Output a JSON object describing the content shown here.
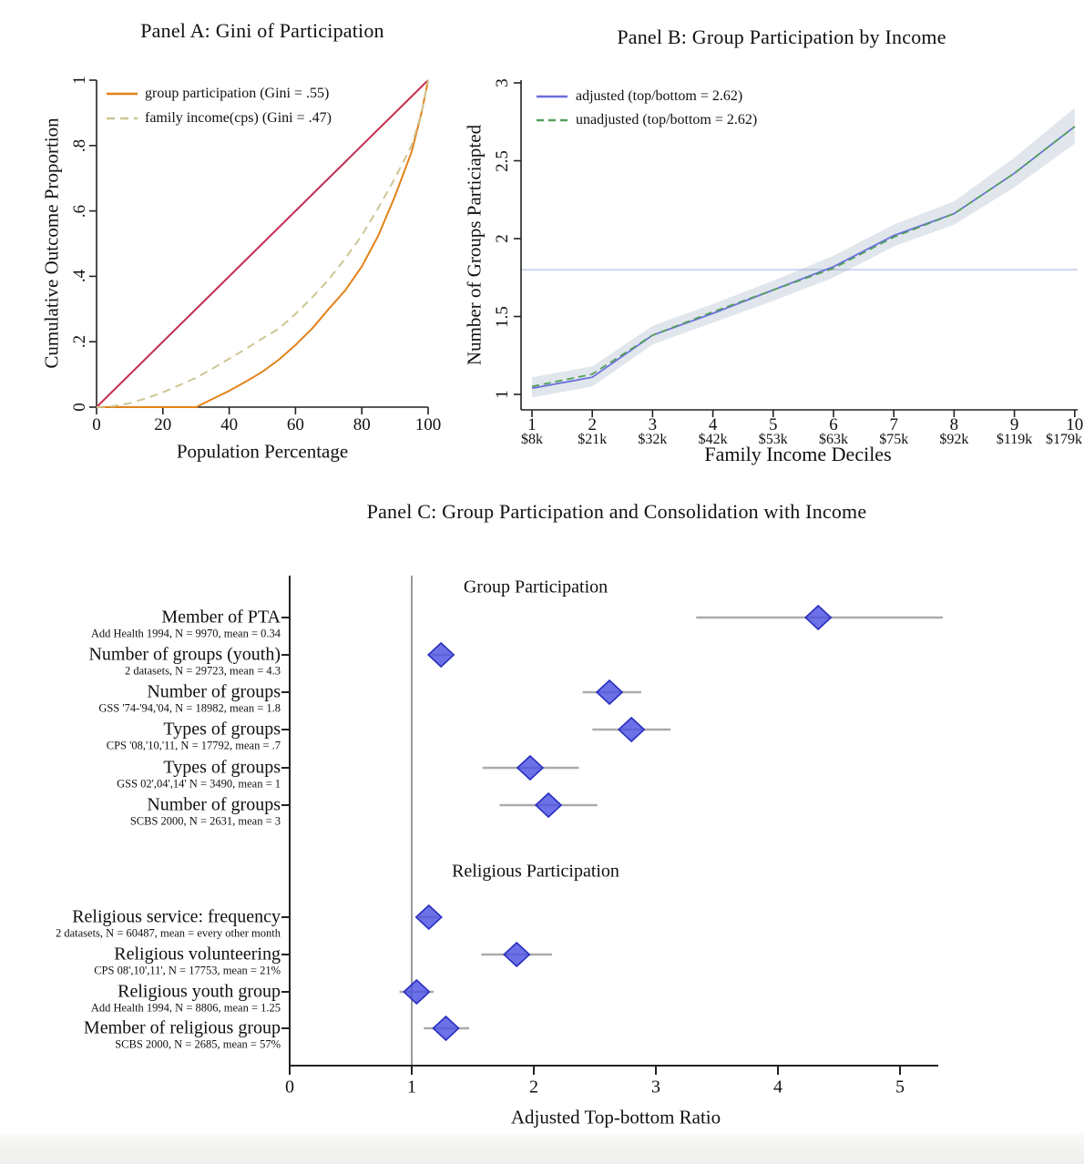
{
  "figure_caption_note": "Three-panel figure on participation inequality",
  "colors": {
    "axis": "#222222",
    "equality_line": "#c22e50",
    "group_participation_line": "#e2821a",
    "family_income_line": "#cec593",
    "adjusted_line": "#6a6fdd",
    "unadjusted_line": "#54a05c",
    "confidence_band": "#93a5bb",
    "reference_line_lavender": "#ccd3f2",
    "forest_ci": "#ababab",
    "forest_reference": "#9a9a9a",
    "diamond_fill": "#4d52e2",
    "diamond_stroke": "#2a2ec0"
  },
  "chart_data": [
    {
      "id": "panelA",
      "type": "line",
      "title": "Panel A: Gini of Participation",
      "xlabel": "Population Percentage",
      "ylabel": "Cumulative Outcome Proportion",
      "xlim": [
        0,
        100
      ],
      "ylim": [
        0,
        1
      ],
      "xticks": [
        0,
        20,
        40,
        60,
        80,
        100
      ],
      "xtick_labels": [
        "0",
        "20",
        "40",
        "60",
        "80",
        "100"
      ],
      "yticks": [
        0,
        0.2,
        0.4,
        0.6,
        0.8,
        1
      ],
      "ytick_labels": [
        "0",
        ".2",
        ".4",
        ".6",
        ".8",
        "1"
      ],
      "grid": false,
      "legend_position": "top-left-inside",
      "series": [
        {
          "name": "equality line",
          "color": "#c22e50",
          "style": "solid",
          "in_legend": false,
          "points": [
            [
              0,
              0
            ],
            [
              100,
              1
            ]
          ]
        },
        {
          "name": "group participation (Gini = .55)",
          "color": "#e2821a",
          "style": "solid",
          "in_legend": true,
          "points": [
            [
              0,
              0
            ],
            [
              30,
              0
            ],
            [
              35,
              0.025
            ],
            [
              40,
              0.05
            ],
            [
              45,
              0.078
            ],
            [
              50,
              0.108
            ],
            [
              55,
              0.145
            ],
            [
              60,
              0.19
            ],
            [
              65,
              0.24
            ],
            [
              70,
              0.3
            ],
            [
              75,
              0.357
            ],
            [
              80,
              0.43
            ],
            [
              85,
              0.525
            ],
            [
              90,
              0.645
            ],
            [
              95,
              0.78
            ],
            [
              98,
              0.9
            ],
            [
              100,
              1
            ]
          ]
        },
        {
          "name": "family income(cps) (Gini = .47)",
          "color": "#cec593",
          "style": "dashed",
          "in_legend": true,
          "points": [
            [
              0,
              0
            ],
            [
              5,
              0.003
            ],
            [
              10,
              0.012
            ],
            [
              15,
              0.027
            ],
            [
              20,
              0.045
            ],
            [
              25,
              0.067
            ],
            [
              30,
              0.09
            ],
            [
              35,
              0.118
            ],
            [
              40,
              0.148
            ],
            [
              45,
              0.178
            ],
            [
              50,
              0.21
            ],
            [
              55,
              0.24
            ],
            [
              60,
              0.285
            ],
            [
              65,
              0.335
            ],
            [
              70,
              0.39
            ],
            [
              75,
              0.455
            ],
            [
              80,
              0.525
            ],
            [
              85,
              0.61
            ],
            [
              90,
              0.7
            ],
            [
              95,
              0.8
            ],
            [
              98,
              0.9
            ],
            [
              100,
              1
            ]
          ]
        }
      ]
    },
    {
      "id": "panelB",
      "type": "line",
      "title": "Panel B: Group Participation by Income",
      "xlabel": "Family Income Deciles",
      "ylabel": "Number of Groups Particiapted",
      "xlim": [
        1,
        10
      ],
      "ylim": [
        1,
        3
      ],
      "x": [
        1,
        2,
        3,
        4,
        5,
        6,
        7,
        8,
        9,
        10
      ],
      "xtick_labels": [
        "1",
        "2",
        "3",
        "4",
        "5",
        "6",
        "7",
        "8",
        "9",
        "10"
      ],
      "xtick_sublabels": [
        "$8k",
        "$21k",
        "$32k",
        "$42k",
        "$53k",
        "$63k",
        "$75k",
        "$92k",
        "$119k",
        "$179k"
      ],
      "yticks": [
        1,
        1.5,
        2,
        2.5,
        3
      ],
      "ytick_labels": [
        "1",
        "1.5",
        "2",
        "2.5",
        "3"
      ],
      "reference_line_y": 1.8,
      "grid": false,
      "legend_position": "top-left-inside",
      "series": [
        {
          "name": "adjusted (top/bottom = 2.62)",
          "color": "#6a6fdd",
          "style": "solid",
          "values": [
            1.04,
            1.11,
            1.38,
            1.52,
            1.67,
            1.82,
            2.02,
            2.16,
            2.42,
            2.72
          ]
        },
        {
          "name": "unadjusted (top/bottom = 2.62)",
          "color": "#54a05c",
          "style": "dashed",
          "values": [
            1.05,
            1.13,
            1.38,
            1.53,
            1.67,
            1.81,
            2.01,
            2.16,
            2.42,
            2.72
          ]
        }
      ],
      "band": {
        "upper": [
          1.11,
          1.18,
          1.44,
          1.58,
          1.73,
          1.89,
          2.09,
          2.24,
          2.52,
          2.84
        ],
        "lower": [
          0.98,
          1.05,
          1.32,
          1.46,
          1.6,
          1.75,
          1.95,
          2.09,
          2.33,
          2.61
        ]
      }
    },
    {
      "id": "panelC",
      "type": "forest",
      "title": "Panel C: Group Participation and Consolidation with Income",
      "xlabel": "Adjusted Top-bottom Ratio",
      "xlim": [
        0,
        5.35
      ],
      "xticks": [
        0,
        1,
        2,
        3,
        4,
        5
      ],
      "xtick_labels": [
        "0",
        "1",
        "2",
        "3",
        "4",
        "5"
      ],
      "reference_x": 1,
      "marker": {
        "shape": "diamond"
      },
      "sections": [
        {
          "header": "Group Participation",
          "rows": [
            {
              "label": "Member of PTA",
              "sublabel": "Add Health 1994, N = 9970, mean = 0.34",
              "value": 4.33,
              "ci": [
                3.33,
                5.35
              ]
            },
            {
              "label": "Number of groups (youth)",
              "sublabel": "2 datasets, N = 29723, mean = 4.3",
              "value": 1.24,
              "ci": [
                1.16,
                1.32
              ]
            },
            {
              "label": "Number of groups",
              "sublabel": "GSS '74-'94,'04, N = 18982, mean = 1.8",
              "value": 2.62,
              "ci": [
                2.4,
                2.88
              ]
            },
            {
              "label": "Types of groups",
              "sublabel": "CPS '08,'10,'11, N = 17792, mean = .7",
              "value": 2.8,
              "ci": [
                2.48,
                3.12
              ]
            },
            {
              "label": "Types of groups",
              "sublabel": "GSS 02',04',14' N = 3490, mean = 1",
              "value": 1.97,
              "ci": [
                1.58,
                2.37
              ]
            },
            {
              "label": "Number of groups",
              "sublabel": "SCBS 2000, N = 2631, mean = 3",
              "value": 2.12,
              "ci": [
                1.72,
                2.52
              ]
            }
          ]
        },
        {
          "header": "Religious Participation",
          "rows": [
            {
              "label": "Religious service: frequency",
              "sublabel": "2 datasets, N = 60487, mean = every other month",
              "value": 1.14,
              "ci": [
                1.06,
                1.22
              ]
            },
            {
              "label": "Religious volunteering",
              "sublabel": "CPS 08',10',11', N = 17753, mean = 21%",
              "value": 1.86,
              "ci": [
                1.57,
                2.15
              ]
            },
            {
              "label": "Religious youth group",
              "sublabel": "Add Health 1994, N = 8806, mean = 1.25",
              "value": 1.04,
              "ci": [
                0.9,
                1.18
              ]
            },
            {
              "label": "Member of religious group",
              "sublabel": "SCBS 2000, N = 2685, mean = 57%",
              "value": 1.28,
              "ci": [
                1.1,
                1.47
              ]
            }
          ]
        }
      ]
    }
  ]
}
